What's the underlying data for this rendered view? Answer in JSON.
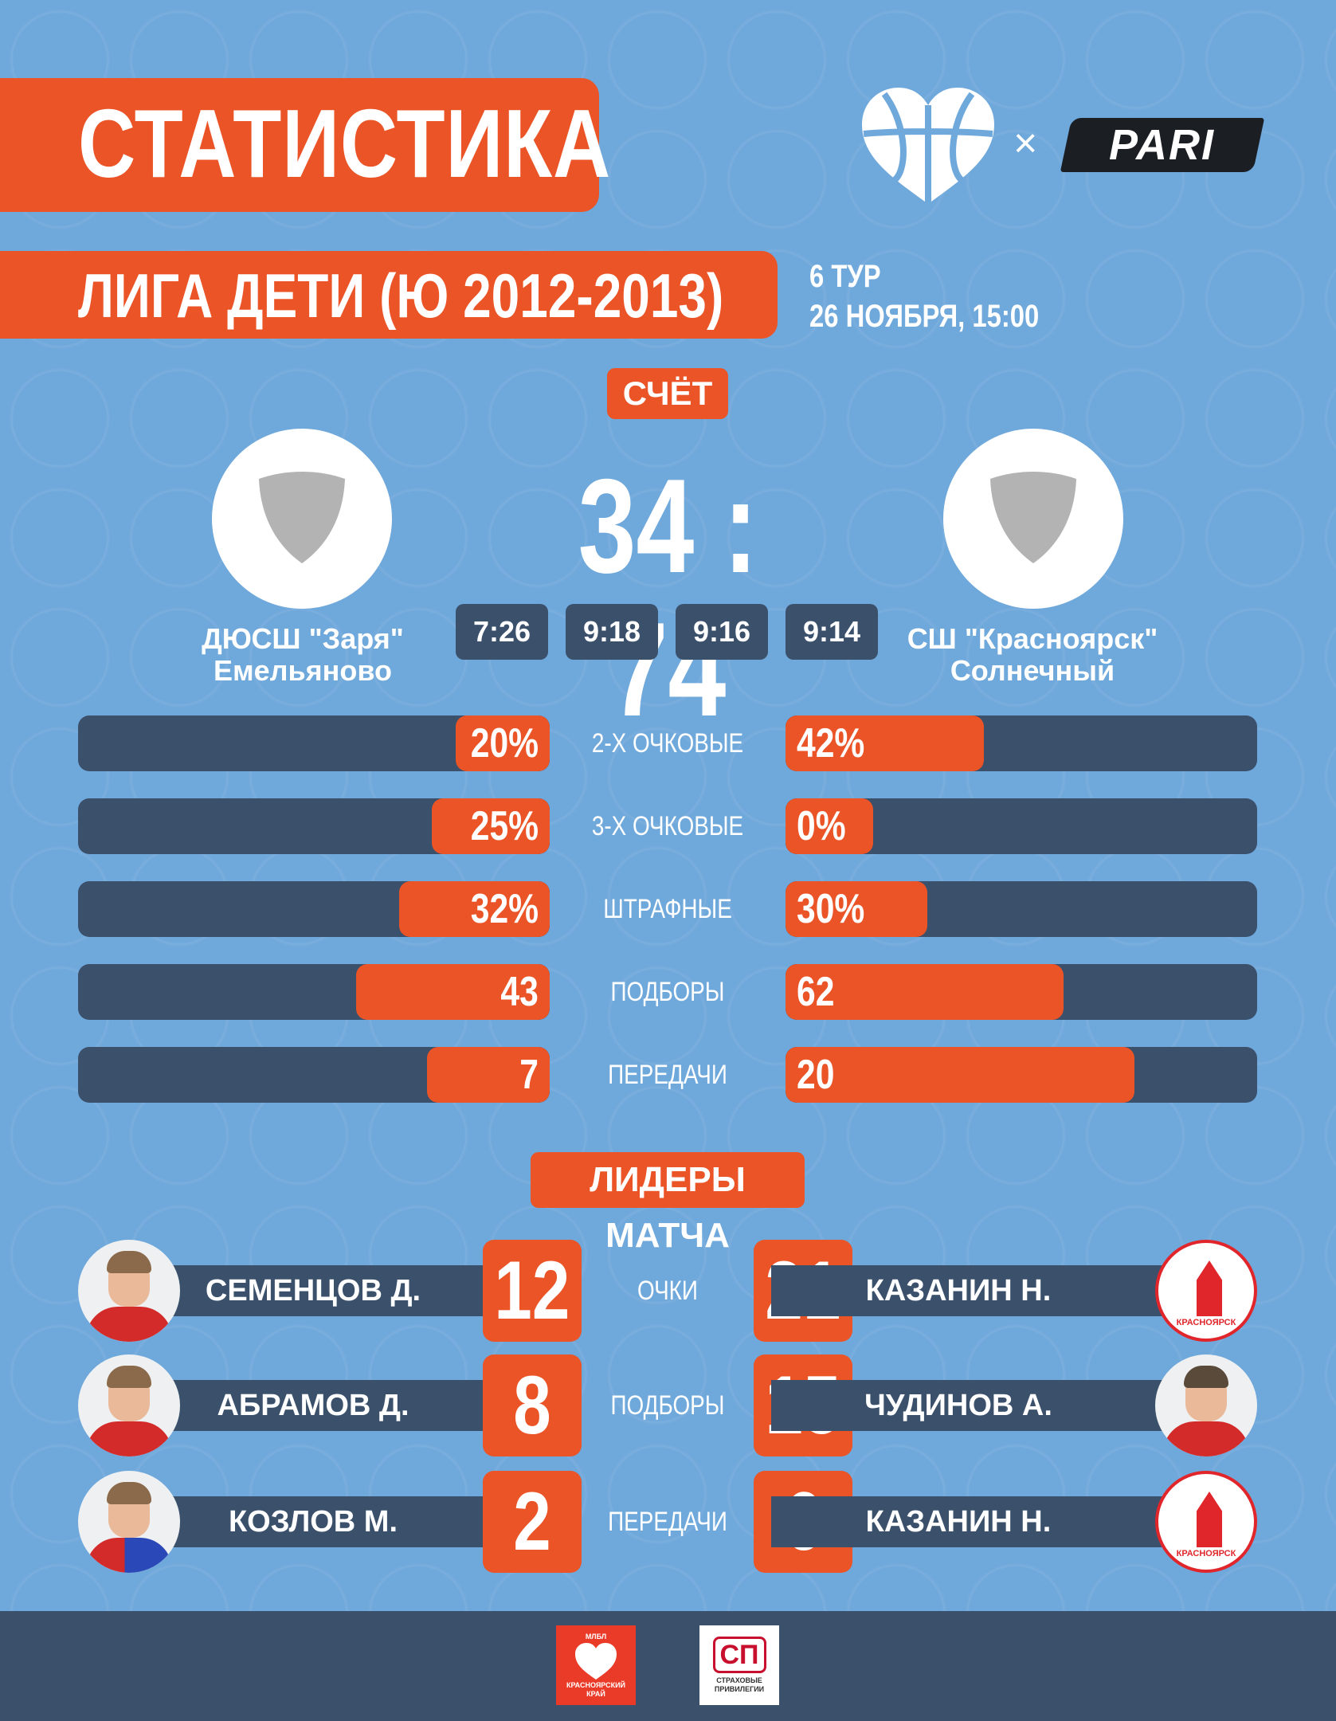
{
  "header": {
    "title": "СТАТИСТИКА",
    "league": "ЛИГА ДЕТИ (Ю 2012-2013)",
    "round": "6 ТУР",
    "date": "26 НОЯБРЯ, 15:00",
    "partner_separator": "×",
    "partner_name": "PARI"
  },
  "match": {
    "score_label": "СЧЁТ",
    "score": "34 : 74",
    "home_team": {
      "line1": "ДЮСШ \"Заря\"",
      "line2": "Емельяново"
    },
    "away_team": {
      "line1": "СШ \"Красноярск\"",
      "line2": "Солнечный"
    },
    "quarters": [
      "7:26",
      "9:18",
      "9:16",
      "9:14"
    ]
  },
  "stats": [
    {
      "label": "2-Х ОЧКОВЫЕ",
      "home": "20%",
      "away": "42%",
      "home_fill": 0.2,
      "away_fill": 0.42
    },
    {
      "label": "3-Х ОЧКОВЫЕ",
      "home": "25%",
      "away": "0%",
      "home_fill": 0.25,
      "away_fill": 0.0
    },
    {
      "label": "ШТРАФНЫЕ",
      "home": "32%",
      "away": "30%",
      "home_fill": 0.32,
      "away_fill": 0.3
    },
    {
      "label": "ПОДБОРЫ",
      "home": "43",
      "away": "62",
      "home_fill": 0.41,
      "away_fill": 0.59
    },
    {
      "label": "ПЕРЕДАЧИ",
      "home": "7",
      "away": "20",
      "home_fill": 0.26,
      "away_fill": 0.74
    }
  ],
  "leaders": {
    "label": "ЛИДЕРЫ МАТЧА",
    "rows": [
      {
        "category": "ОЧКИ",
        "home_name": "СЕМЕНЦОВ Д.",
        "home_value": "12",
        "away_name": "КАЗАНИН Н.",
        "away_value": "21",
        "away_avatar": "school-logo"
      },
      {
        "category": "ПОДБОРЫ",
        "home_name": "АБРАМОВ Д.",
        "home_value": "8",
        "away_name": "ЧУДИНОВ А.",
        "away_value": "15",
        "away_avatar": "player-photo"
      },
      {
        "category": "ПЕРЕДАЧИ",
        "home_name": "КОЗЛОВ М.",
        "home_value": "2",
        "away_name": "КАЗАНИН Н.",
        "away_value": "6",
        "away_avatar": "school-logo"
      }
    ],
    "school_logo_text": "КРАСНОЯРСК"
  },
  "footer": {
    "sponsor1_top": "МЛБЛ",
    "sponsor1_bottom": "КРАСНОЯРСКИЙ КРАЙ",
    "sponsor2_mark": "СП",
    "sponsor2_text": "СТРАХОВЫЕ ПРИВИЛЕГИИ"
  },
  "colors": {
    "background": "#6fa8db",
    "accent": "#ea5426",
    "bar": "#3a506b"
  }
}
